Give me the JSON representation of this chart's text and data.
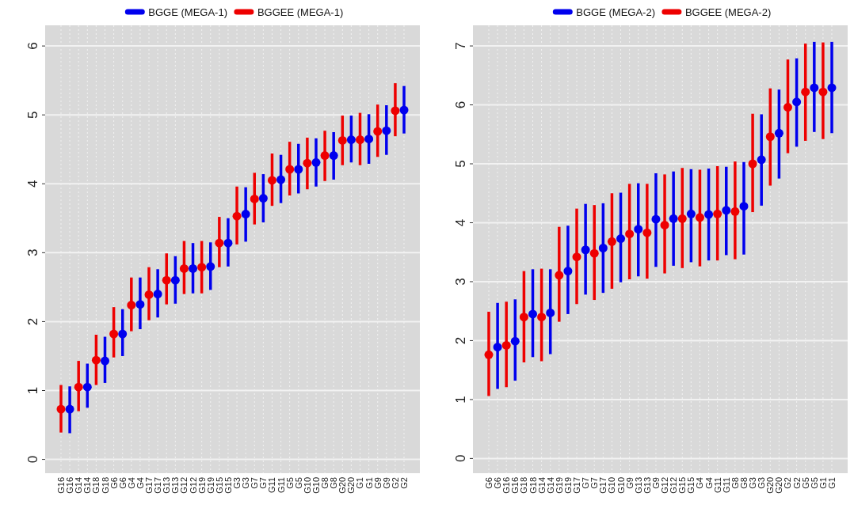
{
  "chart_data": [
    {
      "type": "scatter",
      "categories": [
        "G16",
        "G16",
        "G14",
        "G14",
        "G18",
        "G18",
        "G6",
        "G6",
        "G4",
        "G4",
        "G17",
        "G17",
        "G13",
        "G13",
        "G12",
        "G12",
        "G19",
        "G19",
        "G15",
        "G15",
        "G3",
        "G3",
        "G7",
        "G7",
        "G11",
        "G11",
        "G5",
        "G5",
        "G10",
        "G10",
        "G8",
        "G8",
        "G20",
        "G20",
        "G1",
        "G1",
        "G9",
        "G9",
        "G2",
        "G2"
      ],
      "ylim": [
        -0.2,
        6.3
      ],
      "yticks": [
        0,
        1,
        2,
        3,
        4,
        5,
        6
      ],
      "grid": true,
      "legend": "top",
      "marker": "circle",
      "series": [
        {
          "name": "BGGE (MEGA-1)",
          "color": "#0000ee",
          "values": [
            null,
            0.73,
            null,
            1.05,
            null,
            1.43,
            null,
            1.82,
            null,
            2.25,
            null,
            2.4,
            null,
            2.6,
            null,
            2.77,
            null,
            2.8,
            null,
            3.14,
            null,
            3.56,
            null,
            3.79,
            null,
            4.06,
            null,
            4.21,
            null,
            4.31,
            null,
            4.41,
            null,
            4.64,
            null,
            4.65,
            null,
            4.77,
            null,
            5.07
          ],
          "errors": [
            null,
            [
              0.38,
              1.06
            ],
            null,
            [
              0.75,
              1.39
            ],
            null,
            [
              1.11,
              1.78
            ],
            null,
            [
              1.5,
              2.18
            ],
            null,
            [
              1.89,
              2.64
            ],
            null,
            [
              2.06,
              2.76
            ],
            null,
            [
              2.26,
              2.95
            ],
            null,
            [
              2.41,
              3.14
            ],
            null,
            [
              2.46,
              3.15
            ],
            null,
            [
              2.8,
              3.5
            ],
            null,
            [
              3.16,
              3.95
            ],
            null,
            [
              3.44,
              4.14
            ],
            null,
            [
              3.72,
              4.42
            ],
            null,
            [
              3.86,
              4.58
            ],
            null,
            [
              3.96,
              4.66
            ],
            null,
            [
              4.06,
              4.75
            ],
            null,
            [
              4.31,
              4.99
            ],
            null,
            [
              4.29,
              5.01
            ],
            null,
            [
              4.42,
              5.14
            ],
            null,
            [
              4.73,
              5.42
            ]
          ]
        },
        {
          "name": "BGGEE (MEGA-1)",
          "color": "#ee0000",
          "values": [
            0.73,
            null,
            1.05,
            null,
            1.44,
            null,
            1.82,
            null,
            2.24,
            null,
            2.39,
            null,
            2.6,
            null,
            2.77,
            null,
            2.79,
            null,
            3.14,
            null,
            3.53,
            null,
            3.78,
            null,
            4.05,
            null,
            4.21,
            null,
            4.3,
            null,
            4.41,
            null,
            4.63,
            null,
            4.64,
            null,
            4.76,
            null,
            5.06,
            null
          ],
          "errors": [
            [
              0.39,
              1.08
            ],
            null,
            [
              0.7,
              1.43
            ],
            null,
            [
              1.08,
              1.81
            ],
            null,
            [
              1.48,
              2.21
            ],
            null,
            [
              1.86,
              2.64
            ],
            null,
            [
              2.02,
              2.79
            ],
            null,
            [
              2.25,
              2.99
            ],
            null,
            [
              2.4,
              3.17
            ],
            null,
            [
              2.41,
              3.17
            ],
            null,
            [
              2.79,
              3.52
            ],
            null,
            [
              3.12,
              3.96
            ],
            null,
            [
              3.41,
              4.16
            ],
            null,
            [
              3.68,
              4.44
            ],
            null,
            [
              3.83,
              4.61
            ],
            null,
            [
              3.92,
              4.67
            ],
            null,
            [
              4.04,
              4.77
            ],
            null,
            [
              4.27,
              4.99
            ],
            null,
            [
              4.27,
              5.03
            ],
            null,
            [
              4.39,
              5.15
            ],
            null,
            [
              4.69,
              5.46
            ],
            null
          ]
        }
      ]
    },
    {
      "type": "scatter",
      "categories": [
        "G6",
        "G6",
        "G16",
        "G16",
        "G18",
        "G18",
        "G14",
        "G14",
        "G19",
        "G19",
        "G17",
        "G7",
        "G7",
        "G17",
        "G10",
        "G10",
        "G9",
        "G13",
        "G13",
        "G9",
        "G12",
        "G12",
        "G15",
        "G15",
        "G4",
        "G4",
        "G11",
        "G11",
        "G8",
        "G8",
        "G3",
        "G3",
        "G20",
        "G20",
        "G2",
        "G2",
        "G5",
        "G5",
        "G1",
        "G1"
      ],
      "ylim": [
        -0.25,
        7.35
      ],
      "yticks": [
        0,
        1,
        2,
        3,
        4,
        5,
        6,
        7
      ],
      "grid": true,
      "legend": "top",
      "marker": "circle",
      "series": [
        {
          "name": "BGGE (MEGA-2)",
          "color": "#0000ee",
          "values": [
            null,
            1.89,
            null,
            1.99,
            null,
            2.45,
            null,
            2.47,
            null,
            3.18,
            null,
            3.54,
            null,
            3.57,
            null,
            3.73,
            null,
            3.89,
            null,
            4.06,
            null,
            4.07,
            null,
            4.15,
            null,
            4.14,
            null,
            4.21,
            null,
            4.28,
            null,
            5.07,
            null,
            5.52,
            null,
            6.05,
            null,
            6.29,
            null,
            6.29
          ],
          "errors": [
            null,
            [
              1.18,
              2.64
            ],
            null,
            [
              1.32,
              2.7
            ],
            null,
            [
              1.72,
              3.21
            ],
            null,
            [
              1.77,
              3.21
            ],
            null,
            [
              2.45,
              3.95
            ],
            null,
            [
              2.78,
              4.32
            ],
            null,
            [
              2.81,
              4.33
            ],
            null,
            [
              2.99,
              4.51
            ],
            null,
            [
              3.09,
              4.67
            ],
            null,
            [
              3.25,
              4.84
            ],
            null,
            [
              3.27,
              4.87
            ],
            null,
            [
              3.33,
              4.91
            ],
            null,
            [
              3.36,
              4.92
            ],
            null,
            [
              3.45,
              4.95
            ],
            null,
            [
              3.46,
              5.03
            ],
            null,
            [
              4.29,
              5.84
            ],
            null,
            [
              4.75,
              6.26
            ],
            null,
            [
              5.29,
              6.79
            ],
            null,
            [
              5.54,
              7.07
            ],
            null,
            [
              5.52,
              7.07
            ]
          ]
        },
        {
          "name": "BGGEE (MEGA-2)",
          "color": "#ee0000",
          "values": [
            1.76,
            null,
            1.92,
            null,
            2.4,
            null,
            2.4,
            null,
            3.11,
            null,
            3.42,
            null,
            3.48,
            null,
            3.68,
            null,
            3.81,
            null,
            3.83,
            null,
            3.96,
            null,
            4.07,
            null,
            4.09,
            null,
            4.15,
            null,
            4.19,
            null,
            5.0,
            null,
            5.46,
            null,
            5.96,
            null,
            6.22,
            null,
            6.22,
            null
          ],
          "errors": [
            [
              1.06,
              2.49
            ],
            null,
            [
              1.21,
              2.66
            ],
            null,
            [
              1.63,
              3.18
            ],
            null,
            [
              1.65,
              3.22
            ],
            null,
            [
              2.32,
              3.93
            ],
            null,
            [
              2.62,
              4.24
            ],
            null,
            [
              2.69,
              4.3
            ],
            null,
            [
              2.88,
              4.5
            ],
            null,
            [
              3.04,
              4.66
            ],
            null,
            [
              3.05,
              4.66
            ],
            null,
            [
              3.14,
              4.82
            ],
            null,
            [
              3.23,
              4.93
            ],
            null,
            [
              3.26,
              4.9
            ],
            null,
            [
              3.36,
              4.96
            ],
            null,
            [
              3.38,
              5.04
            ],
            null,
            [
              4.18,
              5.85
            ],
            null,
            [
              4.63,
              6.28
            ],
            null,
            [
              5.18,
              6.77
            ],
            null,
            [
              5.39,
              7.04
            ],
            null,
            [
              5.42,
              7.06
            ],
            null
          ]
        }
      ]
    }
  ]
}
